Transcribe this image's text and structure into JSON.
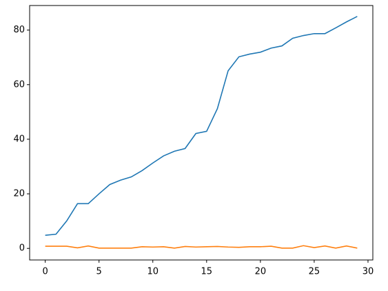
{
  "chart_data": {
    "type": "line",
    "x": [
      0,
      1,
      2,
      3,
      4,
      5,
      6,
      7,
      8,
      9,
      10,
      11,
      12,
      13,
      14,
      15,
      16,
      17,
      18,
      19,
      20,
      21,
      22,
      23,
      24,
      25,
      26,
      27,
      28,
      29
    ],
    "series": [
      {
        "color": "#1f77b4",
        "values": [
          4.8,
          5.2,
          10.1,
          16.4,
          16.4,
          20,
          23.4,
          25,
          26.2,
          28.5,
          31.3,
          33.9,
          35.6,
          36.6,
          42.1,
          42.9,
          51.2,
          65.1,
          70.2,
          71.2,
          71.9,
          73.4,
          74.2,
          77,
          78,
          78.7,
          78.7,
          80.8,
          83,
          85
        ]
      },
      {
        "color": "#ff7f0e",
        "values": [
          0.8,
          0.8,
          0.8,
          0.2,
          0.9,
          0.1,
          0.1,
          0.1,
          0.1,
          0.6,
          0.5,
          0.6,
          0.1,
          0.7,
          0.5,
          0.6,
          0.7,
          0.5,
          0.4,
          0.6,
          0.6,
          0.8,
          0.1,
          0.1,
          1.0,
          0.3,
          0.9,
          0.1,
          0.9,
          0.1
        ]
      }
    ],
    "xlim": [
      -1.45,
      30.45
    ],
    "xticks": [
      0,
      5,
      10,
      15,
      20,
      25,
      30
    ],
    "ylim": [
      -4.24,
      89.0
    ],
    "yticks": [
      0,
      20,
      40,
      60,
      80
    ]
  }
}
